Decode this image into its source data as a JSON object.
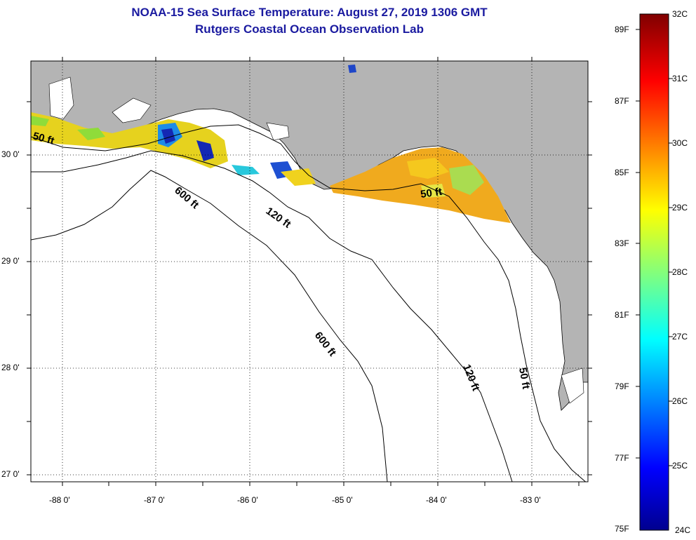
{
  "title": "NOAA-15 Sea Surface Temperature:  August 27, 2019 1306 GMT",
  "subtitle": "Rutgers Coastal Ocean Observation Lab",
  "map": {
    "latitude_labels": [
      "30 0'",
      "29 0'",
      "28 0'",
      "27 0'"
    ],
    "longitude_labels": [
      "-88 0'",
      "-87 0'",
      "-86 0'",
      "-85 0'",
      "-84 0'",
      "-83 0'"
    ],
    "contour_labels": [
      "50 ft",
      "600 ft",
      "120 ft",
      "50 ft",
      "600 ft",
      "120 ft",
      "50 ft"
    ],
    "land_color": "#b4b4b4",
    "water_color": "#ffffff"
  },
  "colorbar": {
    "fahrenheit_labels": [
      "89F",
      "87F",
      "85F",
      "83F",
      "81F",
      "79F",
      "77F",
      "75F"
    ],
    "celsius_labels": [
      "32C",
      "31C",
      "30C",
      "29C",
      "28C",
      "27C",
      "26C",
      "25C",
      "24C"
    ],
    "colormap": "jet",
    "min_c": 24,
    "max_c": 32
  }
}
